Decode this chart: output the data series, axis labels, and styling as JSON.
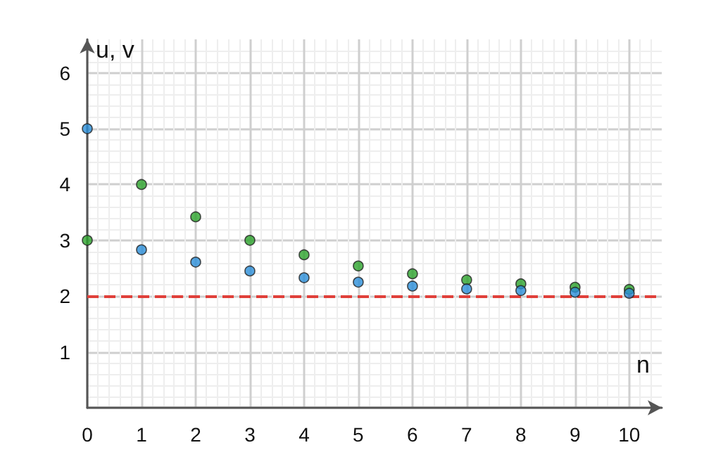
{
  "chart_data": {
    "type": "scatter",
    "xlabel": "n",
    "ylabel": "u, v",
    "x": [
      0,
      1,
      2,
      3,
      4,
      5,
      6,
      7,
      8,
      9,
      10
    ],
    "series": [
      {
        "color": "#2ca42c",
        "values": [
          3,
          4,
          3.42,
          3,
          2.74,
          2.54,
          2.4,
          2.29,
          2.22,
          2.16,
          2.12
        ]
      },
      {
        "color": "#2b8fd9",
        "values": [
          5,
          2.83,
          2.61,
          2.45,
          2.33,
          2.25,
          2.18,
          2.13,
          2.1,
          2.07,
          2.05
        ]
      }
    ],
    "xlim": [
      0,
      10.6
    ],
    "ylim": [
      0,
      6.6
    ],
    "xticks": [
      0,
      1,
      2,
      3,
      4,
      5,
      6,
      7,
      8,
      9,
      10
    ],
    "yticks": [
      {
        "value": 0,
        "label": null
      },
      1,
      2,
      3,
      4,
      5,
      6
    ],
    "ref_lines": [
      {
        "axis": "y",
        "value": 2,
        "color": "#e0403a",
        "line_style": "dashed"
      }
    ],
    "grid": true,
    "marker": "circle"
  }
}
